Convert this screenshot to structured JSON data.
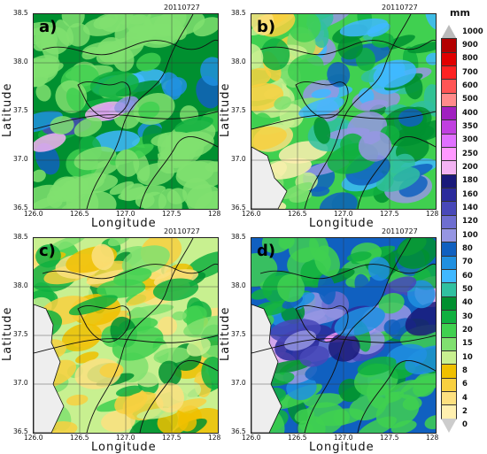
{
  "date_label": "20110727",
  "x_axis_label": "Longitude",
  "y_axis_label": "Latitude",
  "x_ticks": [
    "126.0",
    "126.5",
    "127.0",
    "127.5",
    "128"
  ],
  "y_ticks": [
    "38.5",
    "38.0",
    "37.5",
    "37.0",
    "36.5"
  ],
  "panels": [
    {
      "label": "a)"
    },
    {
      "label": "b)"
    },
    {
      "label": "c)"
    },
    {
      "label": "d)"
    }
  ],
  "colorbar": {
    "unit": "mm",
    "levels": [
      "1000",
      "900",
      "800",
      "700",
      "600",
      "500",
      "400",
      "350",
      "300",
      "250",
      "200",
      "180",
      "160",
      "140",
      "120",
      "100",
      "80",
      "70",
      "60",
      "50",
      "40",
      "30",
      "20",
      "15",
      "10",
      "8",
      "6",
      "4",
      "2",
      "0"
    ],
    "colors": [
      "#d9d9d9",
      "#b30000",
      "#e00000",
      "#ff2222",
      "#ff5555",
      "#ff8b8b",
      "#a020c0",
      "#c040e0",
      "#e070ff",
      "#ff99ff",
      "#f3b3f3",
      "#1a1a7a",
      "#2b2b9c",
      "#4848b8",
      "#6e6ed0",
      "#9696e3",
      "#1060c0",
      "#2090e0",
      "#40b8ff",
      "#30c0a0",
      "#009030",
      "#10b040",
      "#40d050",
      "#80e070",
      "#c8f090",
      "#f0c000",
      "#f8d040",
      "#fce080",
      "#fff0b0",
      "#ffffff"
    ]
  }
}
